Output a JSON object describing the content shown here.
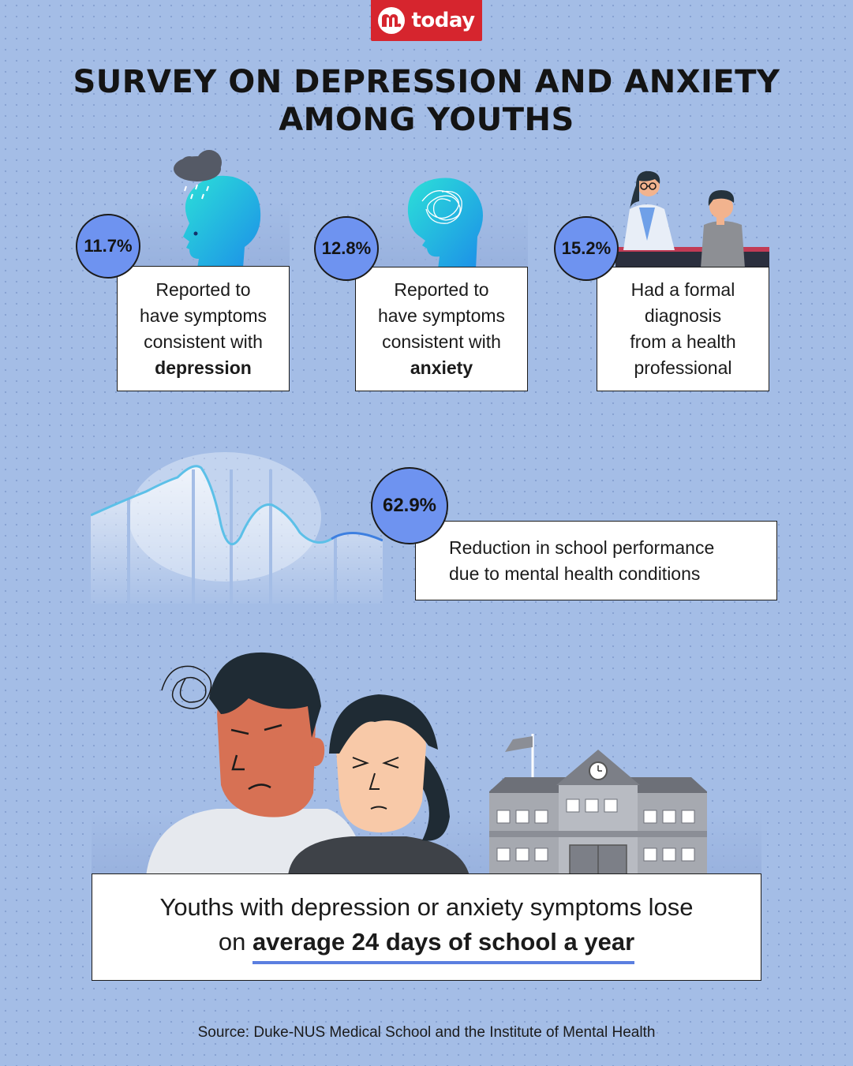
{
  "logo": {
    "text": "today",
    "mark_icon": "mediacorp-m-icon",
    "bg_color": "#d6252e"
  },
  "title": {
    "line1": "SURVEY ON DEPRESSION AND ANXIETY",
    "line2": "AMONG  YOUTHS"
  },
  "stats": [
    {
      "value": "11.7%",
      "line1": "Reported to",
      "line2": "have symptoms",
      "line3": "consistent with",
      "emphasis": "depression",
      "icon": "rainy-head-icon"
    },
    {
      "value": "12.8%",
      "line1": "Reported to",
      "line2": "have symptoms",
      "line3": "consistent with",
      "emphasis": "anxiety",
      "icon": "scribble-head-icon"
    },
    {
      "value": "15.2%",
      "line1": "Had a formal",
      "line2": "diagnosis",
      "line3": "from a health",
      "line4": "professional",
      "icon": "doctor-patient-icon"
    }
  ],
  "performance": {
    "value": "62.9%",
    "line1": "Reduction in school performance",
    "line2": "due to mental health conditions",
    "icon": "wave-graph-icon"
  },
  "school_days": {
    "text_plain": "Youths with depression or anxiety symptoms lose",
    "text_prefix": "on ",
    "text_strong": "average 24 days of school a year",
    "icon": "school-building-icon"
  },
  "source": "Source: Duke-NUS Medical School and the Institute of Mental Health",
  "colors": {
    "accent_circle": "#6e93f0",
    "background": "#a4bde6",
    "underline": "#5b7fe0"
  }
}
